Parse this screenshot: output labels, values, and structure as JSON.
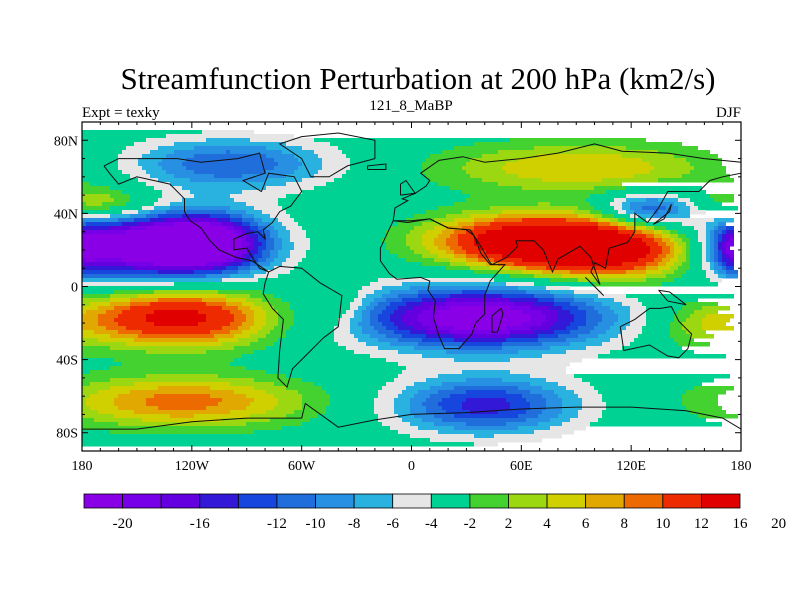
{
  "chart_data": {
    "type": "heatmap",
    "title": "Streamfunction Perturbation at 200 hPa (km2/s)",
    "left_label": "Expt = texky",
    "center_label": "121_8_MaBP",
    "right_label": "DJF",
    "x_ticks": [
      {
        "lon": -180,
        "label": "180"
      },
      {
        "lon": -120,
        "label": "120W"
      },
      {
        "lon": -60,
        "label": "60W"
      },
      {
        "lon": 0,
        "label": "0"
      },
      {
        "lon": 60,
        "label": "60E"
      },
      {
        "lon": 120,
        "label": "120E"
      },
      {
        "lon": 180,
        "label": "180"
      }
    ],
    "y_ticks": [
      {
        "lat": 80,
        "label": "80N"
      },
      {
        "lat": 40,
        "label": "40N"
      },
      {
        "lat": 0,
        "label": "0"
      },
      {
        "lat": -40,
        "label": "40S"
      },
      {
        "lat": -80,
        "label": "80S"
      }
    ],
    "xlim": [
      -180,
      180
    ],
    "ylim": [
      -90,
      90
    ],
    "levels": [
      -20,
      -18,
      -16,
      -14,
      -12,
      -10,
      -8,
      -6,
      -4,
      -2,
      2,
      4,
      6,
      8,
      10,
      12,
      16,
      20
    ],
    "colorbar_labels": [
      {
        "value": -20,
        "label": "-20"
      },
      {
        "value": -16,
        "label": "-16"
      },
      {
        "value": -12,
        "label": "-12"
      },
      {
        "value": -10,
        "label": "-10"
      },
      {
        "value": -8,
        "label": "-8"
      },
      {
        "value": -6,
        "label": "-6"
      },
      {
        "value": -4,
        "label": "-4"
      },
      {
        "value": -2,
        "label": "-2"
      },
      {
        "value": 2,
        "label": "2"
      },
      {
        "value": 4,
        "label": "4"
      },
      {
        "value": 6,
        "label": "6"
      },
      {
        "value": 8,
        "label": "8"
      },
      {
        "value": 10,
        "label": "10"
      },
      {
        "value": 12,
        "label": "12"
      },
      {
        "value": 16,
        "label": "16"
      },
      {
        "value": 20,
        "label": "20"
      }
    ],
    "colors": [
      "#8a00e6",
      "#7700e8",
      "#6400e0",
      "#3318d8",
      "#1646de",
      "#1f6edc",
      "#2790e2",
      "#29b2e0",
      "#e6e6e6",
      "#00d294",
      "#43d230",
      "#9cd812",
      "#d0d000",
      "#e0a800",
      "#ec6a00",
      "#ee2a00",
      "#e00000"
    ],
    "features": [
      {
        "name": "north-pacific-low",
        "lon": -150,
        "lat": 22,
        "amp": -21,
        "sx": 40,
        "sy": 13
      },
      {
        "name": "north-pacific-low-east",
        "lon": -110,
        "lat": 24,
        "amp": -15,
        "sx": 22,
        "sy": 11
      },
      {
        "name": "north-asia-high",
        "lon": 60,
        "lat": 25,
        "amp": 18,
        "sx": 36,
        "sy": 10
      },
      {
        "name": "north-asia-high-east",
        "lon": 110,
        "lat": 20,
        "amp": 19,
        "sx": 36,
        "sy": 11
      },
      {
        "name": "tropical-indian-low",
        "lon": 38,
        "lat": -17,
        "amp": -21,
        "sx": 48,
        "sy": 12
      },
      {
        "name": "tropical-pacific-high",
        "lon": -128,
        "lat": -17,
        "amp": 18,
        "sx": 36,
        "sy": 11
      },
      {
        "name": "south-pacific-high",
        "lon": -125,
        "lat": -63,
        "amp": 11,
        "sx": 48,
        "sy": 10
      },
      {
        "name": "south-indian-low",
        "lon": 40,
        "lat": -65,
        "amp": -13,
        "sx": 35,
        "sy": 11
      },
      {
        "name": "arctic-pacific-low",
        "lon": -100,
        "lat": 67,
        "amp": -10,
        "sx": 40,
        "sy": 10
      },
      {
        "name": "arctic-asia-high",
        "lon": 92,
        "lat": 65,
        "amp": 8,
        "sx": 55,
        "sy": 10
      },
      {
        "name": "east-asia-jet-low",
        "lon": 130,
        "lat": 42,
        "amp": -11,
        "sx": 18,
        "sy": 7
      },
      {
        "name": "atlantic-north-high",
        "lon": -170,
        "lat": 45,
        "amp": 8,
        "sx": 22,
        "sy": 7
      },
      {
        "name": "dateline-low",
        "lon": 178,
        "lat": 20,
        "amp": -8,
        "sx": 10,
        "sy": 10
      },
      {
        "name": "south-atlantic-high",
        "lon": 160,
        "lat": -22,
        "amp": 5,
        "sx": 20,
        "sy": 10
      },
      {
        "name": "south-tropical-atlantic-high",
        "lon": -40,
        "lat": -10,
        "amp": 4,
        "sx": 12,
        "sy": 10
      }
    ],
    "coastlines": [
      [
        [
          -168,
          66
        ],
        [
          -160,
          70
        ],
        [
          -140,
          70
        ],
        [
          -128,
          70
        ],
        [
          -115,
          68
        ],
        [
          -95,
          70
        ],
        [
          -83,
          73
        ],
        [
          -80,
          62
        ],
        [
          -92,
          58
        ],
        [
          -82,
          52
        ],
        [
          -78,
          62
        ],
        [
          -64,
          60
        ],
        [
          -60,
          52
        ],
        [
          -66,
          44
        ],
        [
          -72,
          41
        ],
        [
          -76,
          35
        ],
        [
          -81,
          31
        ],
        [
          -80,
          26
        ],
        [
          -84,
          30
        ],
        [
          -90,
          29
        ],
        [
          -97,
          26
        ],
        [
          -97,
          20
        ],
        [
          -90,
          21
        ],
        [
          -87,
          16
        ],
        [
          -83,
          10
        ],
        [
          -78,
          8
        ],
        [
          -72,
          11
        ],
        [
          -60,
          10
        ],
        [
          -50,
          2
        ],
        [
          -38,
          -5
        ],
        [
          -40,
          -22
        ],
        [
          -48,
          -28
        ],
        [
          -58,
          -38
        ],
        [
          -65,
          -45
        ],
        [
          -68,
          -55
        ],
        [
          -73,
          -50
        ],
        [
          -72,
          -35
        ],
        [
          -70,
          -18
        ],
        [
          -76,
          -12
        ],
        [
          -81,
          -4
        ],
        [
          -80,
          2
        ],
        [
          -78,
          8
        ],
        [
          -87,
          14
        ],
        [
          -96,
          16
        ],
        [
          -105,
          20
        ],
        [
          -110,
          25
        ],
        [
          -115,
          32
        ],
        [
          -121,
          36
        ],
        [
          -124,
          41
        ],
        [
          -124,
          48
        ],
        [
          -132,
          56
        ],
        [
          -150,
          60
        ],
        [
          -160,
          56
        ],
        [
          -165,
          62
        ],
        [
          -168,
          66
        ]
      ],
      [
        [
          -55,
          60
        ],
        [
          -45,
          60
        ],
        [
          -35,
          66
        ],
        [
          -20,
          70
        ],
        [
          -20,
          80
        ],
        [
          -40,
          84
        ],
        [
          -60,
          82
        ],
        [
          -72,
          78
        ],
        [
          -60,
          70
        ],
        [
          -55,
          60
        ]
      ],
      [
        [
          -10,
          36
        ],
        [
          -9,
          43
        ],
        [
          -2,
          47
        ],
        [
          -5,
          48
        ],
        [
          2,
          51
        ],
        [
          8,
          55
        ],
        [
          10,
          58
        ],
        [
          5,
          62
        ],
        [
          15,
          69
        ],
        [
          28,
          71
        ],
        [
          40,
          68
        ],
        [
          60,
          70
        ],
        [
          80,
          73
        ],
        [
          100,
          78
        ],
        [
          115,
          74
        ],
        [
          140,
          73
        ],
        [
          160,
          70
        ],
        [
          180,
          68
        ],
        [
          180,
          62
        ],
        [
          170,
          60
        ],
        [
          163,
          58
        ],
        [
          157,
          52
        ],
        [
          140,
          52
        ],
        [
          135,
          43
        ],
        [
          129,
          35
        ],
        [
          122,
          40
        ],
        [
          122,
          30
        ],
        [
          118,
          24
        ],
        [
          108,
          21
        ],
        [
          106,
          10
        ],
        [
          100,
          13
        ],
        [
          98,
          8
        ],
        [
          103,
          1
        ],
        [
          98,
          16
        ],
        [
          92,
          22
        ],
        [
          80,
          15
        ],
        [
          77,
          8
        ],
        [
          72,
          20
        ],
        [
          67,
          25
        ],
        [
          57,
          25
        ],
        [
          58,
          22
        ],
        [
          52,
          16
        ],
        [
          44,
          12
        ],
        [
          43,
          13
        ],
        [
          39,
          20
        ],
        [
          34,
          28
        ],
        [
          32,
          31
        ],
        [
          20,
          32
        ],
        [
          10,
          37
        ],
        [
          0,
          36
        ],
        [
          -10,
          36
        ]
      ],
      [
        [
          -10,
          36
        ],
        [
          -17,
          21
        ],
        [
          -17,
          14
        ],
        [
          -12,
          7
        ],
        [
          -8,
          4
        ],
        [
          5,
          5
        ],
        [
          10,
          3
        ],
        [
          9,
          -2
        ],
        [
          13,
          -8
        ],
        [
          12,
          -17
        ],
        [
          15,
          -27
        ],
        [
          18,
          -34
        ],
        [
          26,
          -34
        ],
        [
          33,
          -26
        ],
        [
          35,
          -20
        ],
        [
          40,
          -15
        ],
        [
          40,
          -5
        ],
        [
          43,
          3
        ],
        [
          51,
          12
        ],
        [
          43,
          12
        ],
        [
          38,
          18
        ],
        [
          34,
          28
        ],
        [
          30,
          31
        ],
        [
          20,
          32
        ],
        [
          10,
          37
        ],
        [
          -2,
          35
        ],
        [
          -10,
          36
        ]
      ],
      [
        [
          114,
          -22
        ],
        [
          122,
          -18
        ],
        [
          130,
          -12
        ],
        [
          136,
          -12
        ],
        [
          142,
          -11
        ],
        [
          146,
          -19
        ],
        [
          153,
          -26
        ],
        [
          151,
          -34
        ],
        [
          146,
          -39
        ],
        [
          140,
          -38
        ],
        [
          135,
          -35
        ],
        [
          130,
          -32
        ],
        [
          116,
          -35
        ],
        [
          114,
          -22
        ]
      ],
      [
        [
          -180,
          -78
        ],
        [
          -150,
          -78
        ],
        [
          -120,
          -74
        ],
        [
          -90,
          -72
        ],
        [
          -60,
          -72
        ],
        [
          -58,
          -64
        ],
        [
          -40,
          -77
        ],
        [
          -20,
          -73
        ],
        [
          0,
          -70
        ],
        [
          30,
          -69
        ],
        [
          60,
          -67
        ],
        [
          90,
          -66
        ],
        [
          120,
          -66
        ],
        [
          150,
          -68
        ],
        [
          170,
          -72
        ],
        [
          180,
          -78
        ]
      ],
      [
        [
          44,
          -25
        ],
        [
          47,
          -25
        ],
        [
          50,
          -15
        ],
        [
          49,
          -12
        ],
        [
          44,
          -16
        ],
        [
          44,
          -25
        ]
      ],
      [
        [
          95,
          5
        ],
        [
          105,
          -5
        ],
        [
          100,
          0
        ],
        [
          95,
          5
        ]
      ],
      [
        [
          132,
          34
        ],
        [
          141,
          41
        ],
        [
          142,
          45
        ],
        [
          138,
          37
        ],
        [
          132,
          34
        ]
      ],
      [
        [
          -6,
          50
        ],
        [
          2,
          51
        ],
        [
          -3,
          58
        ],
        [
          -6,
          56
        ],
        [
          -6,
          50
        ]
      ],
      [
        [
          135,
          -2
        ],
        [
          141,
          -3
        ],
        [
          150,
          -10
        ],
        [
          140,
          -8
        ],
        [
          135,
          -2
        ]
      ],
      [
        [
          -24,
          64
        ],
        [
          -14,
          64
        ],
        [
          -14,
          67
        ],
        [
          -24,
          66
        ],
        [
          -24,
          64
        ]
      ]
    ]
  }
}
